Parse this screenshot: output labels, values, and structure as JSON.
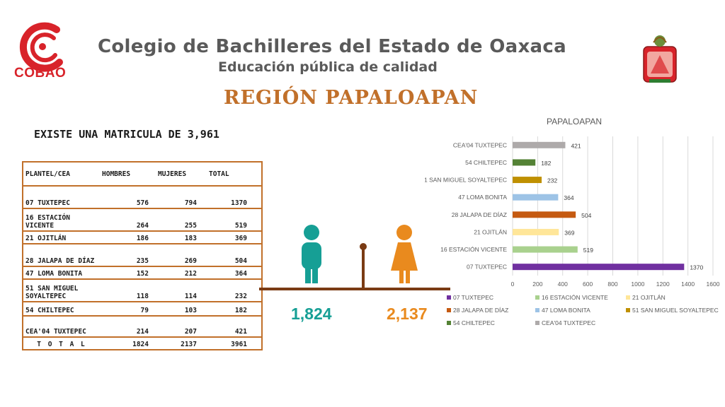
{
  "header": {
    "logo_text": "COBAO",
    "title": "Colegio de Bachilleres del Estado de Oaxaca",
    "subtitle": "Educación pública de calidad",
    "region": "REGIÓN PAPALOAPAN"
  },
  "summary": {
    "matricula": "EXISTE UNA MATRICULA DE 3,961"
  },
  "table": {
    "headers": [
      "PLANTEL/CEA",
      "HOMBRES",
      "MUJERES",
      "TOTAL"
    ],
    "rows": [
      {
        "plantel": "07 TUXTEPEC",
        "hombres": "576",
        "mujeres": "794",
        "total": "1370"
      },
      {
        "plantel": "16 ESTACIÓN VICENTE",
        "hombres": "264",
        "mujeres": "255",
        "total": "519"
      },
      {
        "plantel": "21 OJITLÁN",
        "hombres": "186",
        "mujeres": "183",
        "total": "369"
      },
      {
        "plantel": "28 JALAPA DE DÍAZ",
        "hombres": "235",
        "mujeres": "269",
        "total": "504"
      },
      {
        "plantel": "47 LOMA BONITA",
        "hombres": "152",
        "mujeres": "212",
        "total": "364"
      },
      {
        "plantel": "51 SAN MIGUEL SOYALTEPEC",
        "hombres": "118",
        "mujeres": "114",
        "total": "232"
      },
      {
        "plantel": "54 CHILTEPEC",
        "hombres": "79",
        "mujeres": "103",
        "total": "182"
      },
      {
        "plantel": "CEA'04 TUXTEPEC",
        "hombres": "214",
        "mujeres": "207",
        "total": "421"
      }
    ],
    "total_row": {
      "plantel": "T O T A L",
      "hombres": "1824",
      "mujeres": "2137",
      "total": "3961"
    }
  },
  "gender": {
    "men": "1,824",
    "women": "2,137",
    "men_color": "#169f95",
    "women_color": "#e98a1e"
  },
  "chart_data": {
    "type": "bar",
    "orientation": "horizontal",
    "title": "PAPALOAPAN",
    "categories": [
      "07 TUXTEPEC",
      "16 ESTACIÓN VICENTE",
      "21 OJITLÁN",
      "28 JALAPA DE DÍAZ",
      "47 LOMA BONITA",
      "51 SAN MIGUEL SOYALTEPEC",
      "54 CHILTEPEC",
      "CEA'04 TUXTEPEC"
    ],
    "values": [
      1370,
      519,
      369,
      504,
      364,
      232,
      182,
      421
    ],
    "colors": [
      "#7030a0",
      "#a9d18e",
      "#ffe699",
      "#c55a11",
      "#9dc3e6",
      "#bf9000",
      "#548235",
      "#aeaaaa"
    ],
    "xlim": [
      0,
      1600
    ],
    "xticks": [
      0,
      200,
      400,
      600,
      800,
      1000,
      1200,
      1400,
      1600
    ],
    "grid": true,
    "legend": "bottom"
  }
}
